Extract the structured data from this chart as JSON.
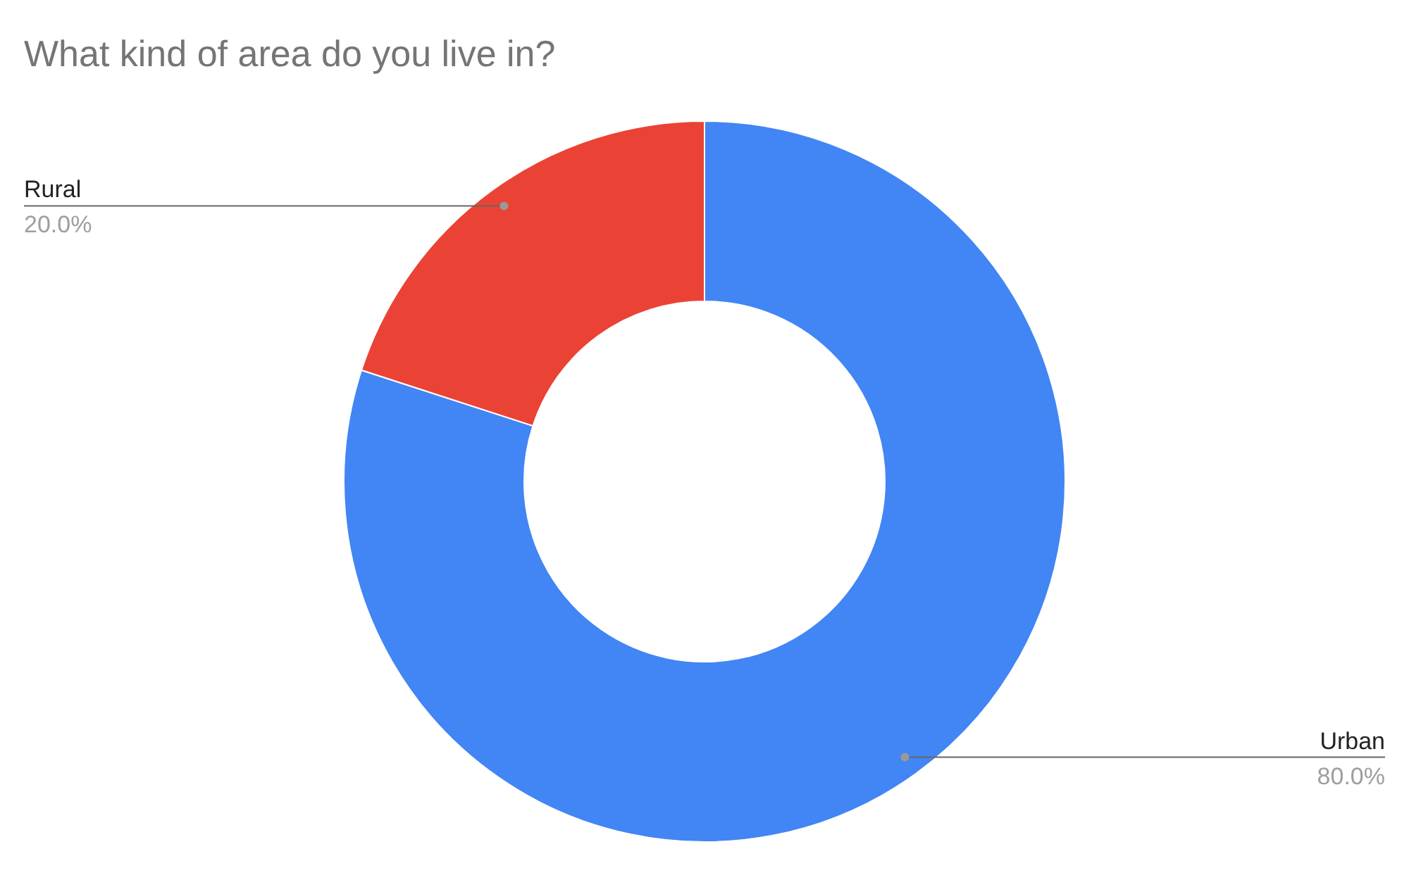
{
  "chart_data": {
    "type": "donut",
    "title": "What kind of area do you live in?",
    "categories": [
      "Urban",
      "Rural"
    ],
    "values": [
      80,
      20
    ],
    "colors": [
      "#4285f4",
      "#ea4335"
    ],
    "value_labels": [
      "80.0%",
      "20.0%"
    ]
  }
}
